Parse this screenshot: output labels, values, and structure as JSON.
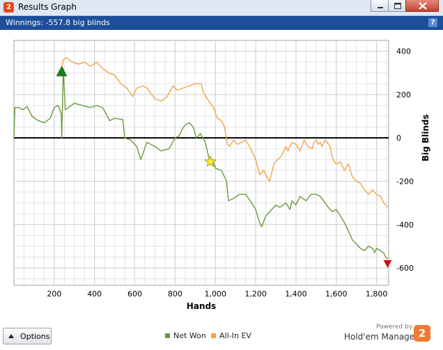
{
  "window": {
    "title": "Results Graph",
    "app_icon": "2"
  },
  "header": {
    "winnings": "Winnings: -557.8 big blinds",
    "help": "?"
  },
  "footer": {
    "options_label": "Options",
    "legend": [
      {
        "label": "Net Won",
        "color": "#6a9a3a"
      },
      {
        "label": "All-In EV",
        "color": "#f3a24b"
      }
    ],
    "powered_by": "Powered by",
    "brand": "Hold'em Manager",
    "brand_icon": "2"
  },
  "chart_data": {
    "type": "line",
    "xlabel": "Hands",
    "ylabel": "Big Blinds",
    "xlim": [
      0,
      1860
    ],
    "ylim": [
      -680,
      450
    ],
    "x_ticks": [
      "200",
      "400",
      "600",
      "800",
      "1,000",
      "1,200",
      "1,400",
      "1,600",
      "1,800"
    ],
    "y_ticks": [
      "400",
      "200",
      "0",
      "-200",
      "-400",
      "-600"
    ],
    "grid": true,
    "series": [
      {
        "name": "Net Won",
        "color": "#6a9a3a",
        "x": [
          0,
          5,
          25,
          45,
          65,
          90,
          120,
          150,
          180,
          200,
          220,
          235,
          237,
          245,
          255,
          270,
          300,
          340,
          380,
          410,
          440,
          470,
          475,
          500,
          540,
          550,
          580,
          610,
          630,
          660,
          700,
          730,
          770,
          800,
          820,
          835,
          850,
          870,
          890,
          905,
          925,
          950,
          965,
          975,
          985,
          1000,
          1030,
          1055,
          1065,
          1090,
          1120,
          1150,
          1180,
          1200,
          1215,
          1230,
          1250,
          1280,
          1300,
          1320,
          1350,
          1370,
          1380,
          1400,
          1420,
          1450,
          1475,
          1500,
          1520,
          1545,
          1560,
          1580,
          1600,
          1620,
          1640,
          1660,
          1680,
          1700,
          1720,
          1740,
          1760,
          1780,
          1790,
          1800,
          1820,
          1835,
          1845,
          1855
        ],
        "y": [
          0,
          140,
          140,
          130,
          145,
          100,
          80,
          70,
          90,
          140,
          150,
          110,
          0,
          320,
          130,
          140,
          160,
          150,
          140,
          150,
          140,
          90,
          80,
          90,
          85,
          0,
          -10,
          -40,
          -100,
          -20,
          -40,
          -60,
          -50,
          0,
          10,
          40,
          60,
          70,
          50,
          0,
          20,
          -20,
          -80,
          -120,
          -100,
          -140,
          -150,
          -200,
          -290,
          -280,
          -260,
          -260,
          -300,
          -330,
          -380,
          -410,
          -360,
          -330,
          -310,
          -320,
          -300,
          -330,
          -290,
          -310,
          -270,
          -290,
          -260,
          -260,
          -270,
          -300,
          -320,
          -340,
          -330,
          -360,
          -390,
          -430,
          -470,
          -490,
          -510,
          -520,
          -500,
          -510,
          -530,
          -510,
          -520,
          -530,
          -550,
          -557
        ]
      },
      {
        "name": "All-In EV",
        "color": "#f3a24b",
        "x": [
          237,
          245,
          260,
          290,
          320,
          350,
          380,
          410,
          440,
          470,
          500,
          530,
          560,
          590,
          610,
          640,
          660,
          700,
          730,
          760,
          790,
          810,
          840,
          870,
          900,
          930,
          940,
          960,
          990,
          1010,
          1030,
          1045,
          1060,
          1070,
          1090,
          1110,
          1130,
          1150,
          1170,
          1180,
          1190,
          1200,
          1220,
          1240,
          1255,
          1270,
          1290,
          1310,
          1330,
          1350,
          1360,
          1380,
          1400,
          1420,
          1440,
          1460,
          1480,
          1490,
          1500,
          1510,
          1520,
          1530,
          1545,
          1555,
          1570,
          1580,
          1590,
          1600,
          1620,
          1640,
          1660,
          1680,
          1700,
          1720,
          1740,
          1760,
          1780,
          1800,
          1820,
          1835,
          1845,
          1855
        ],
        "y": [
          320,
          360,
          370,
          350,
          340,
          350,
          330,
          350,
          320,
          300,
          290,
          250,
          230,
          190,
          230,
          240,
          230,
          180,
          170,
          190,
          240,
          220,
          230,
          240,
          250,
          250,
          210,
          180,
          140,
          90,
          80,
          50,
          -30,
          -40,
          -10,
          -30,
          -20,
          -10,
          -40,
          -60,
          -80,
          -100,
          -170,
          -150,
          -180,
          -200,
          -120,
          -100,
          -80,
          -40,
          -60,
          -20,
          -30,
          -60,
          -10,
          -40,
          -50,
          -20,
          -10,
          -30,
          -20,
          -40,
          -10,
          -20,
          -40,
          -90,
          -110,
          -120,
          -110,
          -150,
          -120,
          -180,
          -200,
          -210,
          -240,
          -260,
          -240,
          -260,
          -270,
          -300,
          -310,
          -320
        ]
      }
    ],
    "markers": [
      {
        "type": "triangle-up",
        "color": "#1a7a1a",
        "x": 237,
        "y": 310
      },
      {
        "type": "star",
        "color": "#ffee33",
        "x": 975,
        "y": -110
      },
      {
        "type": "triangle-down",
        "color": "#cc1111",
        "x": 1855,
        "y": -580
      }
    ]
  }
}
